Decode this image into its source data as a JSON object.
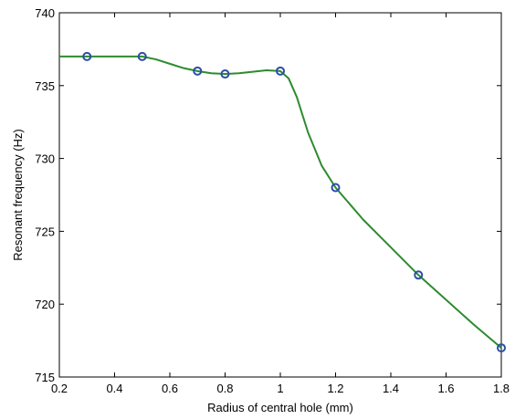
{
  "chart_data": {
    "type": "line",
    "xlabel": "Radius of central hole (mm)",
    "ylabel": "Resonant frequency (Hz)",
    "xlim": [
      0.2,
      1.8
    ],
    "ylim": [
      715,
      740
    ],
    "xticks": [
      0.2,
      0.4,
      0.6,
      0.8,
      1,
      1.2,
      1.4,
      1.6,
      1.8
    ],
    "yticks": [
      715,
      720,
      725,
      730,
      735,
      740
    ],
    "grid": false,
    "series": [
      {
        "style": "curve",
        "color": "#2e8b2e",
        "x": [
          0.2,
          0.3,
          0.4,
          0.5,
          0.55,
          0.6,
          0.65,
          0.7,
          0.75,
          0.8,
          0.85,
          0.9,
          0.95,
          1.0,
          1.03,
          1.06,
          1.1,
          1.15,
          1.2,
          1.3,
          1.4,
          1.5,
          1.6,
          1.7,
          1.8
        ],
        "y": [
          737,
          737,
          737,
          737,
          736.8,
          736.5,
          736.2,
          736,
          735.85,
          735.8,
          735.85,
          735.95,
          736.05,
          736,
          735.5,
          734.2,
          731.8,
          729.5,
          728,
          725.8,
          723.9,
          722,
          720.3,
          718.6,
          717
        ]
      },
      {
        "style": "markers",
        "marker": "circle",
        "color": "#2b4fa8",
        "x": [
          0.3,
          0.5,
          0.7,
          0.8,
          1.0,
          1.2,
          1.5,
          1.8
        ],
        "y": [
          737,
          737,
          736,
          735.8,
          736,
          728,
          722,
          717
        ]
      }
    ]
  }
}
